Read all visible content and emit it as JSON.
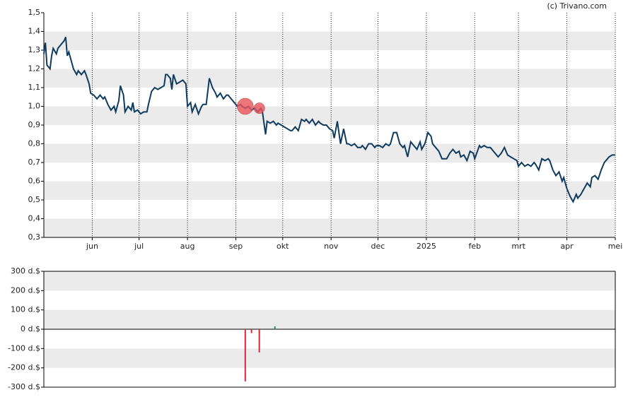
{
  "credit": "(c) Trivano.com",
  "chart_data": [
    {
      "type": "line",
      "xlim": [
        0,
        366
      ],
      "xticks": [
        {
          "value": 31,
          "label": "jun"
        },
        {
          "value": 61,
          "label": "jul"
        },
        {
          "value": 92,
          "label": "aug"
        },
        {
          "value": 123,
          "label": "sep"
        },
        {
          "value": 153,
          "label": "okt"
        },
        {
          "value": 184,
          "label": "nov"
        },
        {
          "value": 214,
          "label": "dec"
        },
        {
          "value": 245,
          "label": "2025"
        },
        {
          "value": 276,
          "label": "feb"
        },
        {
          "value": 304,
          "label": "mrt"
        },
        {
          "value": 335,
          "label": "apr"
        },
        {
          "value": 366,
          "label": "mei"
        }
      ],
      "ylim": [
        0.3,
        1.5
      ],
      "yticks": [
        {
          "value": 0.3,
          "label": "0,3"
        },
        {
          "value": 0.4,
          "label": "0,4"
        },
        {
          "value": 0.5,
          "label": "0,5"
        },
        {
          "value": 0.6,
          "label": "0,6"
        },
        {
          "value": 0.7,
          "label": "0,7"
        },
        {
          "value": 0.8,
          "label": "0,8"
        },
        {
          "value": 0.9,
          "label": "0,9"
        },
        {
          "value": 1.0,
          "label": "1,0"
        },
        {
          "value": 1.1,
          "label": "1,1"
        },
        {
          "value": 1.2,
          "label": "1,2"
        },
        {
          "value": 1.3,
          "label": "1,3"
        },
        {
          "value": 1.4,
          "label": "1,4"
        },
        {
          "value": 1.5,
          "label": "1,5"
        }
      ],
      "grid": true,
      "x": [
        0,
        1,
        2,
        4,
        5,
        6,
        8,
        9,
        11,
        13,
        14,
        15,
        16,
        18,
        19,
        21,
        22,
        24,
        26,
        27,
        29,
        30,
        32,
        34,
        36,
        38,
        39,
        41,
        43,
        45,
        46,
        48,
        49,
        51,
        52,
        54,
        56,
        57,
        58,
        60,
        62,
        64,
        66,
        67,
        69,
        71,
        73,
        75,
        77,
        78,
        79,
        81,
        82,
        83,
        85,
        87,
        89,
        91,
        92,
        94,
        95,
        97,
        99,
        101,
        102,
        104,
        106,
        108,
        110,
        111,
        113,
        115,
        117,
        118,
        120,
        122,
        124,
        126,
        127,
        129,
        131,
        133,
        135,
        137,
        139,
        140,
        142,
        143,
        145,
        147,
        149,
        150,
        152,
        154,
        156,
        158,
        159,
        161,
        163,
        165,
        167,
        168,
        170,
        172,
        174,
        176,
        177,
        179,
        181,
        183,
        185,
        186,
        188,
        190,
        192,
        194,
        195,
        197,
        199,
        201,
        203,
        204,
        206,
        208,
        210,
        212,
        213,
        215,
        217,
        219,
        221,
        222,
        224,
        226,
        228,
        230,
        231,
        233,
        235,
        237,
        239,
        241,
        242,
        244,
        246,
        248,
        249,
        251,
        253,
        255,
        257,
        258,
        260,
        262,
        264,
        266,
        267,
        269,
        271,
        273,
        275,
        276,
        279,
        280,
        282,
        284,
        286,
        288,
        290,
        291,
        293,
        295,
        297,
        299,
        301,
        303,
        304,
        306,
        308,
        310,
        312,
        314,
        315,
        317,
        319,
        321,
        323,
        324,
        326,
        328,
        330,
        332,
        333,
        335,
        337,
        339,
        341,
        342,
        344,
        346,
        348,
        350,
        351,
        353,
        355,
        357,
        359,
        360,
        362,
        364,
        366
      ],
      "series": [
        {
          "color": "#0f3b5f",
          "values": [
            1.28,
            1.34,
            1.22,
            1.2,
            1.27,
            1.31,
            1.28,
            1.31,
            1.33,
            1.35,
            1.37,
            1.27,
            1.29,
            1.23,
            1.2,
            1.17,
            1.19,
            1.17,
            1.19,
            1.17,
            1.12,
            1.07,
            1.06,
            1.04,
            1.06,
            1.04,
            1.05,
            1.01,
            0.98,
            1.0,
            0.97,
            1.03,
            1.11,
            1.06,
            0.97,
            1.0,
            0.98,
            1.02,
            0.97,
            0.98,
            0.96,
            0.97,
            0.97,
            1.01,
            1.08,
            1.1,
            1.09,
            1.1,
            1.11,
            1.17,
            1.17,
            1.15,
            1.09,
            1.17,
            1.12,
            1.13,
            1.14,
            1.12,
            1.0,
            1.02,
            0.97,
            1.01,
            0.96,
            1.0,
            1.01,
            1.01,
            1.15,
            1.1,
            1.07,
            1.05,
            1.07,
            1.04,
            1.06,
            1.06,
            1.04,
            1.02,
            1.0,
            1.01,
            1.0,
            0.99,
            1.0,
            0.98,
            0.99,
            0.97,
            0.99,
            0.97,
            0.85,
            0.92,
            0.91,
            0.92,
            0.9,
            0.91,
            0.9,
            0.89,
            0.88,
            0.87,
            0.87,
            0.89,
            0.87,
            0.93,
            0.92,
            0.93,
            0.91,
            0.93,
            0.9,
            0.92,
            0.91,
            0.9,
            0.9,
            0.88,
            0.87,
            0.83,
            0.92,
            0.8,
            0.88,
            0.8,
            0.8,
            0.79,
            0.8,
            0.78,
            0.78,
            0.79,
            0.77,
            0.8,
            0.8,
            0.78,
            0.79,
            0.79,
            0.78,
            0.8,
            0.79,
            0.8,
            0.86,
            0.86,
            0.8,
            0.78,
            0.79,
            0.73,
            0.81,
            0.79,
            0.77,
            0.81,
            0.77,
            0.8,
            0.86,
            0.84,
            0.8,
            0.78,
            0.76,
            0.72,
            0.72,
            0.72,
            0.75,
            0.77,
            0.75,
            0.76,
            0.73,
            0.74,
            0.71,
            0.76,
            0.75,
            0.72,
            0.79,
            0.78,
            0.79,
            0.78,
            0.78,
            0.76,
            0.74,
            0.73,
            0.75,
            0.78,
            0.74,
            0.73,
            0.72,
            0.71,
            0.68,
            0.7,
            0.68,
            0.69,
            0.68,
            0.7,
            0.69,
            0.66,
            0.72,
            0.71,
            0.72,
            0.71,
            0.66,
            0.63,
            0.65,
            0.6,
            0.62,
            0.56,
            0.52,
            0.49,
            0.53,
            0.51,
            0.53,
            0.56,
            0.59,
            0.57,
            0.62,
            0.63,
            0.61,
            0.66,
            0.7,
            0.71,
            0.73,
            0.74,
            0.74
          ]
        }
      ],
      "markers": {
        "color": "#e8545c",
        "x": [
          129,
          138
        ],
        "values": [
          1.0,
          0.99
        ],
        "sizes": [
          270,
          120
        ]
      }
    },
    {
      "type": "bar",
      "xlim": [
        0,
        366
      ],
      "ylim": [
        -300,
        300
      ],
      "yticks": [
        {
          "value": 300,
          "label": "300 d.$"
        },
        {
          "value": 200,
          "label": "200 d.$"
        },
        {
          "value": 100,
          "label": "100 d.$"
        },
        {
          "value": 0,
          "label": "0 d.$"
        },
        {
          "value": -100,
          "label": "-100 d.$"
        },
        {
          "value": -200,
          "label": "-200 d.$"
        },
        {
          "value": -300,
          "label": "-300 d.$"
        }
      ],
      "grid": true,
      "x": [
        129,
        133,
        138,
        148
      ],
      "values": [
        -270,
        -20,
        -120,
        15
      ],
      "colors": [
        "#d62839",
        "#d62839",
        "#d62839",
        "#2e8b57"
      ]
    }
  ]
}
